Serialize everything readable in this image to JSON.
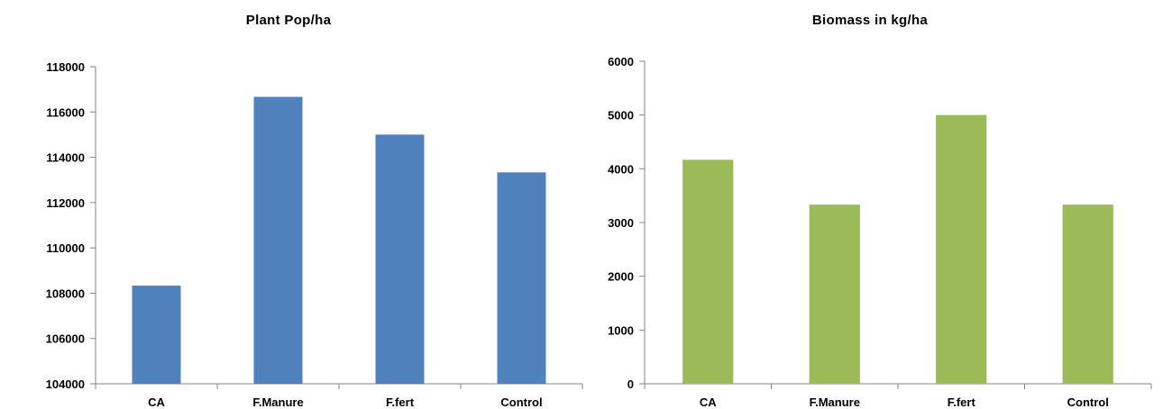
{
  "chart_data": [
    {
      "type": "bar",
      "title": "Plant Pop/ha",
      "categories": [
        "CA",
        "F.Manure",
        "F.fert",
        "Control"
      ],
      "values": [
        108333,
        116667,
        115000,
        113333
      ],
      "ylim": [
        104000,
        118000
      ],
      "yticks": [
        "104000",
        "106000",
        "108000",
        "110000",
        "112000",
        "114000",
        "116000",
        "118000"
      ],
      "xlabel": "",
      "ylabel": "",
      "grid": false,
      "color": "#4f81bd"
    },
    {
      "type": "bar",
      "title": "Biomass in kg/ha",
      "categories": [
        "CA",
        "F.Manure",
        "F.fert",
        "Control"
      ],
      "values": [
        4167,
        3333,
        5000,
        3333
      ],
      "ylim": [
        0,
        6000
      ],
      "yticks": [
        "0",
        "1000",
        "2000",
        "3000",
        "4000",
        "5000",
        "6000"
      ],
      "xlabel": "",
      "ylabel": "",
      "grid": false,
      "color": "#9bbb59"
    }
  ]
}
